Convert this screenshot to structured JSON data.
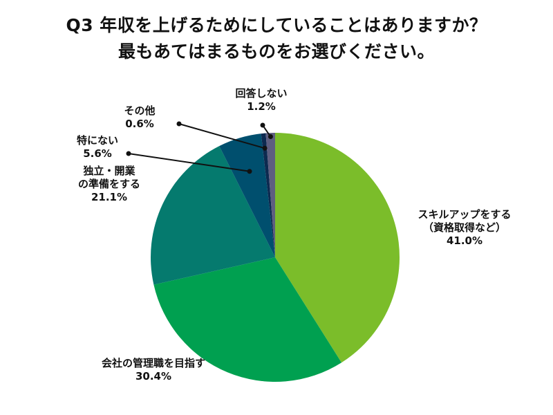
{
  "title_lines": [
    "Q3 年収を上げるためにしていることはありますか？",
    "最もあてはまるものをお選びください。"
  ],
  "chart_data": {
    "type": "pie",
    "start_angle_deg": 0,
    "direction": "clockwise",
    "slices": [
      {
        "label_lines": [
          "スキルアップをする",
          "（資格取得など）"
        ],
        "value": 41.0,
        "value_label": "41.0%",
        "color": "#7bbd2a"
      },
      {
        "label_lines": [
          "会社の管理職を目指す"
        ],
        "value": 30.4,
        "value_label": "30.4%",
        "color": "#00a050"
      },
      {
        "label_lines": [
          "独立・開業",
          "の準備をする"
        ],
        "value": 21.1,
        "value_label": "21.1%",
        "color": "#057a6e"
      },
      {
        "label_lines": [
          "特にない"
        ],
        "value": 5.6,
        "value_label": "5.6%",
        "color": "#004f6e"
      },
      {
        "label_lines": [
          "その他"
        ],
        "value": 0.6,
        "value_label": "0.6%",
        "color": "#0d2a50"
      },
      {
        "label_lines": [
          "回答しない"
        ],
        "value": 1.2,
        "value_label": "1.2%",
        "color": "#5e5e80"
      }
    ]
  }
}
